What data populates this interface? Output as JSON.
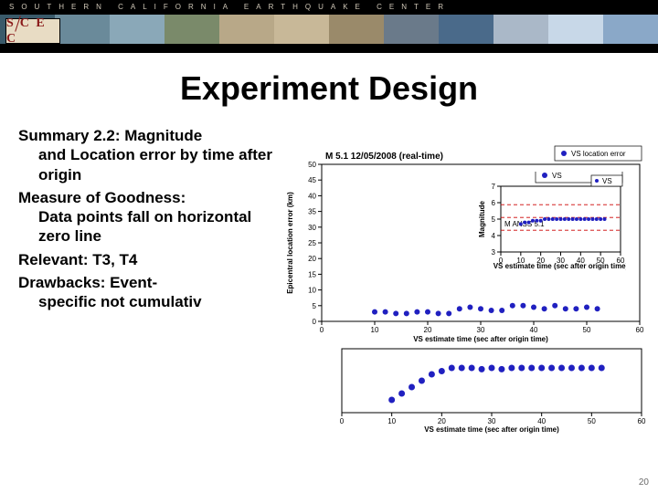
{
  "header": {
    "org_text": "SOUTHERN CALIFORNIA EARTHQUAKE CENTER",
    "logo_text_left": "S",
    "logo_text_mid": "C",
    "logo_text_right": "E C",
    "strip_colors": [
      "#3a5a6a",
      "#6a8a9a",
      "#8aa8b8",
      "#7a8a6a",
      "#b8a888",
      "#c8b898",
      "#9a8a6a",
      "#6a7a8a",
      "#4a6a8a",
      "#aab8c8",
      "#c8d8e8",
      "#8aa8c8"
    ]
  },
  "title": "Experiment Design",
  "text": {
    "p1_lead": "Summary 2.2: Magnitude",
    "p1_body": "and Location error by time after origin",
    "p2_lead": "Measure of Goodness:",
    "p2_body": "Data points fall on horizontal zero line",
    "p3": "Relevant: T3, T4",
    "p4_lead": "Drawbacks: Event-",
    "p4_body": "specific not cumulativ"
  },
  "chart_top": {
    "type": "scatter",
    "title": "M 5.1 12/05/2008 (real-time)",
    "legend": "VS location error",
    "xlabel": "VS estimate time (sec after origin time)",
    "ylabel": "Epicentral location error (km)",
    "xlim": [
      0,
      60
    ],
    "xtick_step": 10,
    "ylim": [
      0,
      50
    ],
    "ytick_step": 5,
    "marker_color": "#2020c0",
    "marker_size": 3,
    "background_color": "#ffffff",
    "points_x": [
      10,
      12,
      14,
      16,
      18,
      20,
      22,
      24,
      26,
      28,
      30,
      32,
      34,
      36,
      38,
      40,
      42,
      44,
      46,
      48,
      50,
      52
    ],
    "points_y": [
      3,
      3,
      2.5,
      2.5,
      3,
      3,
      2.5,
      2.5,
      4,
      4.5,
      4,
      3.5,
      3.5,
      5,
      5,
      4.5,
      4,
      5,
      4,
      4,
      4.5,
      4
    ]
  },
  "chart_inset": {
    "type": "scatter",
    "legend": "VS",
    "xlabel": "VS estimate time (sec after origin time)",
    "ylabel": "Magnitude",
    "xlim": [
      0,
      60
    ],
    "xtick_step": 10,
    "ylim": [
      3,
      7
    ],
    "ytick_step": 1,
    "ref_line_y": 5.1,
    "ref_line_label": "M ANSS 5.1",
    "marker_color": "#2020c0",
    "marker_size": 2,
    "points_x": [
      10,
      12,
      14,
      16,
      18,
      20,
      22,
      24,
      26,
      28,
      30,
      32,
      34,
      36,
      38,
      40,
      42,
      44,
      46,
      48,
      50,
      52
    ],
    "points_y": [
      4.7,
      4.8,
      4.8,
      4.9,
      4.9,
      4.9,
      5.0,
      5.0,
      5.0,
      5.0,
      5.0,
      5.0,
      5.0,
      5.0,
      5.0,
      5.0,
      5.0,
      5.0,
      5.0,
      5.0,
      5.0,
      5.0
    ]
  },
  "chart_bottom": {
    "type": "scatter",
    "xlabel": "VS estimate time (sec after origin time)",
    "xlim": [
      0,
      60
    ],
    "xtick_step": 10,
    "ylim": [
      0,
      10
    ],
    "ytick_step": 2,
    "marker_color": "#2020c0",
    "marker_size": 3.5,
    "points_x": [
      10,
      12,
      14,
      16,
      18,
      20,
      22,
      24,
      26,
      28,
      30,
      32,
      34,
      36,
      38,
      40,
      42,
      44,
      46,
      48,
      50,
      52
    ],
    "points_y": [
      2,
      3,
      4,
      5,
      6,
      6.5,
      7,
      7,
      7,
      6.8,
      7,
      6.8,
      7,
      7,
      7,
      7,
      7,
      7,
      7,
      7,
      7,
      7
    ]
  },
  "page_number": "20"
}
